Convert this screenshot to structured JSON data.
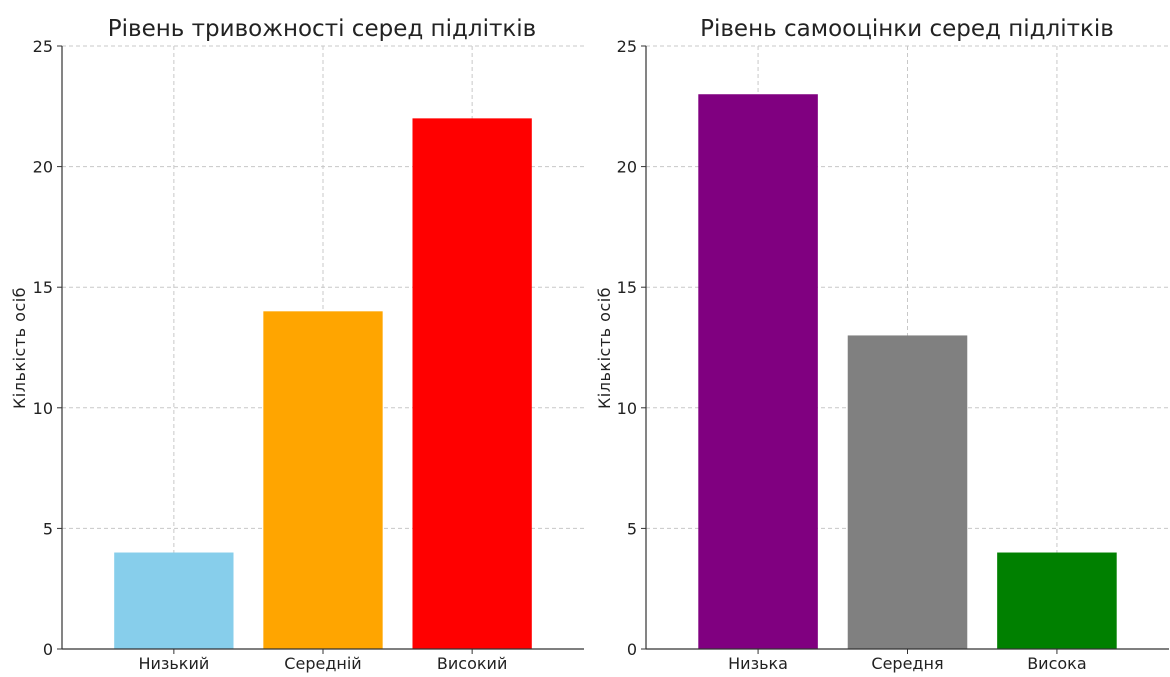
{
  "chart_data": [
    {
      "type": "bar",
      "title": "Рівень тривожності серед підлітків",
      "xlabel": "",
      "ylabel": "Кількість осіб",
      "categories": [
        "Низький",
        "Середній",
        "Високий"
      ],
      "values": [
        4,
        14,
        22
      ],
      "colors": [
        "#87CEEB",
        "#FFA500",
        "#FF0000"
      ],
      "ylim": [
        0,
        25
      ],
      "yticks": [
        0,
        5,
        10,
        15,
        20,
        25
      ],
      "grid": true
    },
    {
      "type": "bar",
      "title": "Рівень самооцінки серед підлітків",
      "xlabel": "",
      "ylabel": "Кількість осіб",
      "categories": [
        "Низька",
        "Середня",
        "Висока"
      ],
      "values": [
        23,
        13,
        4
      ],
      "colors": [
        "#800080",
        "#808080",
        "#008000"
      ],
      "ylim": [
        0,
        25
      ],
      "yticks": [
        0,
        5,
        10,
        15,
        20,
        25
      ],
      "grid": true
    }
  ]
}
